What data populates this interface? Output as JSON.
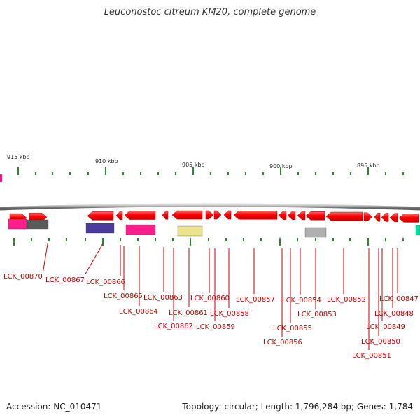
{
  "title": "Leuconostoc citreum KM20, complete genome",
  "footer": {
    "accession": "Accession: NC_010471",
    "topology": "Topology: circular; Length: 1,796,284 bp; Genes: 1,784"
  },
  "colors": {
    "backbone": "#8a8a8a",
    "gene_arrow": "#ff0000",
    "tick": "#2a8a2a",
    "label": "#cc0000"
  },
  "scale_labels": [
    "915 kbp",
    "910 kbp",
    "905 kbp",
    "900 kbp",
    "895 kbp"
  ],
  "gene_labels": [
    "LCK_00870",
    "LCK_00867",
    "LCK_00866",
    "LCK_00865",
    "LCK_00864",
    "LCK_00863",
    "LCK_00862",
    "LCK_00861",
    "LCK_00860",
    "LCK_00859",
    "LCK_00858",
    "LCK_00857",
    "LCK_00856",
    "LCK_00855",
    "LCK_00854",
    "LCK_00853",
    "LCK_00852",
    "LCK_00851",
    "LCK_00850",
    "LCK_00849",
    "LCK_00848",
    "LCK_00847"
  ]
}
